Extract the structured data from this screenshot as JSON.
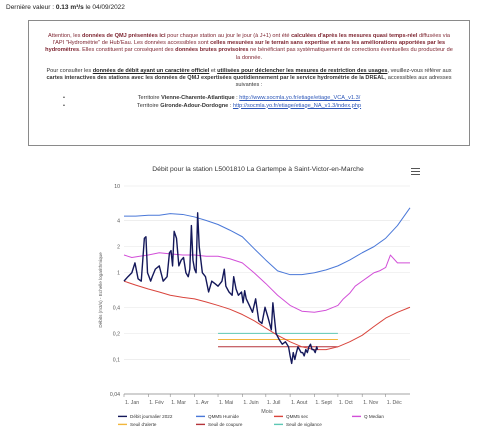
{
  "last_value": {
    "label": "Dernière valeur :",
    "value": "0.13 m³/s",
    "date": "le 04/09/2022"
  },
  "notice": {
    "p1": [
      {
        "t": "Attention, les ",
        "s": "n"
      },
      {
        "t": "données de QMJ présentées ici",
        "s": "b"
      },
      {
        "t": " pour chaque station au jour le jour (à J+1) ont été ",
        "s": "n"
      },
      {
        "t": "calculées d'après les mesures quasi temps-réel",
        "s": "b"
      },
      {
        "t": " diffusées via l'API \"Hydrométrie\" de Hub'Eau. Les données accessibles sont ",
        "s": "n"
      },
      {
        "t": "celles mesurées sur le terrain sans expertise et sans les améliorations apportées par les hydromètres",
        "s": "b"
      },
      {
        "t": ". Elles constituent par conséquent des ",
        "s": "n"
      },
      {
        "t": "données brutes provisoires",
        "s": "b"
      },
      {
        "t": " ne bénéficiant pas systématiquement de corrections éventuelles du producteur de la donnée.",
        "s": "n"
      }
    ],
    "p2": [
      {
        "t": "Pour consulter les ",
        "s": "n"
      },
      {
        "t": "données de débit ayant un caractère officiel",
        "s": "u"
      },
      {
        "t": " et ",
        "s": "n"
      },
      {
        "t": "utilisées pour déclencher les mesures de restriction des usages",
        "s": "u"
      },
      {
        "t": ", veuillez-vous référer aux ",
        "s": "n"
      },
      {
        "t": "cartes interactives des stations avec les données de QMJ expertisées quotidiennement par le service hydrométrie de la DREAL",
        "s": "b"
      },
      {
        "t": ", accessibles aux adresses suivantes :",
        "s": "n"
      }
    ],
    "territories": [
      {
        "prefix": "Territoire ",
        "name": "Vienne-Charente-Atlantique",
        "sep": " : ",
        "url": "http://www.socmla.yo.fr/etiage/etiage_VCA_v1.3/"
      },
      {
        "prefix": "Territoire ",
        "name": "Gironde-Adour-Dordogne",
        "sep": " : ",
        "url": "http://socmla.yo.fr/etiage/etiage_NA_v1.3/index.php"
      }
    ]
  },
  "menu_icon": "hamburger-menu-icon",
  "chart_data": {
    "type": "line",
    "title": "Débit pour la station L5001810 La Gartempe à Saint-Victor-en-Marche",
    "xlabel": "Mois",
    "ylabel": "Débits (m3/s) - Echelle logarithmique",
    "y_scale": "log",
    "ylim": [
      0.04,
      10
    ],
    "y_ticks": [
      "0,04",
      "0,1",
      "0,2",
      "0,4",
      "1",
      "2",
      "4",
      "10"
    ],
    "x_range_days": [
      0,
      365
    ],
    "x_tick_labels": [
      "1. Jan",
      "1. Fév",
      "1. Mar",
      "1. Avr",
      "1. Mai",
      "1. Juin",
      "1. Juil",
      "1. Aout",
      "1. Sept",
      "1. Oct",
      "1. Nov",
      "1. Déc"
    ],
    "x_tick_days": [
      0,
      31,
      59,
      90,
      120,
      151,
      181,
      212,
      243,
      273,
      304,
      334
    ],
    "grid": true,
    "legend_position": "bottom",
    "series": [
      {
        "name": "Débit journalier 2022",
        "color": "#14185a",
        "kind": "line",
        "x": [
          0,
          5,
          10,
          14,
          18,
          22,
          26,
          28,
          30,
          32,
          34,
          36,
          40,
          45,
          50,
          55,
          58,
          60,
          62,
          64,
          67,
          70,
          73,
          76,
          79,
          82,
          84,
          86,
          88,
          90,
          92,
          94,
          96,
          100,
          104,
          108,
          112,
          116,
          120,
          125,
          128,
          130,
          134,
          138,
          140,
          143,
          146,
          150,
          152,
          154,
          156,
          160,
          164,
          168,
          172,
          176,
          180,
          184,
          188,
          190,
          192,
          194,
          198,
          202,
          206,
          210,
          212,
          214,
          216,
          218,
          220,
          222,
          224,
          226,
          228,
          230,
          232,
          234,
          236,
          238,
          240,
          242,
          244,
          246,
          247
        ],
        "y": [
          0.8,
          0.9,
          1.0,
          1.3,
          0.85,
          0.8,
          2.5,
          2.6,
          1.0,
          0.9,
          0.8,
          0.9,
          1.1,
          1.2,
          0.8,
          0.9,
          1.7,
          1.8,
          1.2,
          3.0,
          2.5,
          1.2,
          1.4,
          1.5,
          1.0,
          0.9,
          1.1,
          3.5,
          1.4,
          1.1,
          1.0,
          4.9,
          2.0,
          1.0,
          0.9,
          0.6,
          0.8,
          0.75,
          0.7,
          0.8,
          1.1,
          0.7,
          0.6,
          0.55,
          0.9,
          0.65,
          0.55,
          0.6,
          0.45,
          0.62,
          0.5,
          0.42,
          0.35,
          0.5,
          0.28,
          0.26,
          0.4,
          0.3,
          0.22,
          0.45,
          0.3,
          0.2,
          0.17,
          0.15,
          0.16,
          0.14,
          0.11,
          0.09,
          0.12,
          0.1,
          0.12,
          0.14,
          0.13,
          0.12,
          0.12,
          0.11,
          0.13,
          0.12,
          0.14,
          0.15,
          0.13,
          0.13,
          0.12,
          0.14,
          0.13
        ]
      },
      {
        "name": "QMM5 Humide",
        "color": "#4a78d8",
        "kind": "line",
        "x": [
          0,
          15,
          31,
          45,
          59,
          75,
          90,
          105,
          120,
          135,
          151,
          166,
          181,
          196,
          212,
          227,
          243,
          258,
          273,
          288,
          304,
          319,
          334,
          349,
          365
        ],
        "y": [
          4.5,
          4.5,
          4.6,
          4.6,
          4.8,
          4.7,
          4.4,
          4.0,
          3.6,
          3.1,
          2.6,
          1.9,
          1.4,
          1.05,
          0.95,
          0.95,
          1.0,
          1.08,
          1.2,
          1.4,
          1.7,
          2.0,
          2.5,
          3.5,
          5.6
        ]
      },
      {
        "name": "QMM5 sec",
        "color": "#d9453d",
        "kind": "line",
        "x": [
          0,
          15,
          31,
          45,
          59,
          75,
          90,
          105,
          120,
          135,
          151,
          166,
          181,
          196,
          212,
          227,
          243,
          258,
          273,
          288,
          304,
          319,
          334,
          349,
          365
        ],
        "y": [
          0.8,
          0.72,
          0.65,
          0.6,
          0.55,
          0.52,
          0.5,
          0.46,
          0.42,
          0.38,
          0.33,
          0.28,
          0.23,
          0.19,
          0.16,
          0.14,
          0.13,
          0.13,
          0.14,
          0.16,
          0.19,
          0.24,
          0.3,
          0.35,
          0.4
        ]
      },
      {
        "name": "Q Median",
        "color": "#d24fd8",
        "kind": "line",
        "x": [
          0,
          10,
          20,
          31,
          45,
          59,
          75,
          90,
          105,
          120,
          135,
          151,
          166,
          181,
          196,
          212,
          227,
          243,
          258,
          273,
          280,
          288,
          295,
          304,
          312,
          319,
          326,
          334,
          340,
          349,
          358,
          365
        ],
        "y": [
          1.6,
          1.5,
          1.55,
          1.6,
          1.7,
          1.65,
          1.6,
          1.6,
          1.55,
          1.55,
          1.45,
          1.3,
          1.0,
          0.75,
          0.55,
          0.42,
          0.36,
          0.35,
          0.37,
          0.42,
          0.5,
          0.58,
          0.7,
          0.8,
          0.9,
          1.0,
          1.05,
          1.15,
          1.6,
          1.3,
          1.3,
          1.3
        ]
      },
      {
        "name": "Seuil d'alerte",
        "color": "#f2b63b",
        "kind": "hline",
        "x": [
          120,
          273
        ],
        "y": [
          0.17,
          0.17
        ]
      },
      {
        "name": "Seuil de coupure",
        "color": "#b5343a",
        "kind": "hline",
        "x": [
          120,
          273
        ],
        "y": [
          0.14,
          0.14
        ]
      },
      {
        "name": "Seuil de vigilance",
        "color": "#5ec8b5",
        "kind": "hline",
        "x": [
          120,
          273
        ],
        "y": [
          0.2,
          0.2
        ]
      }
    ]
  }
}
